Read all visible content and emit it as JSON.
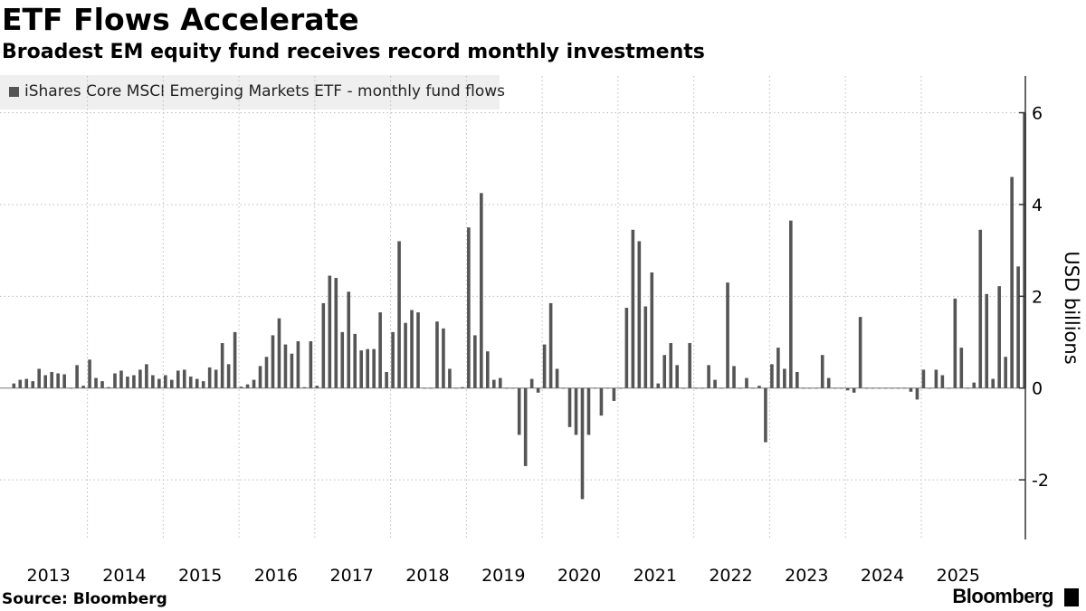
{
  "header": {
    "title": "ETF Flows Accelerate",
    "subtitle": "Broadest EM equity fund receives record monthly investments"
  },
  "footer": {
    "source": "Source: Bloomberg",
    "brand": "Bloomberg"
  },
  "colors": {
    "bar": "#555555",
    "grid": "#bdbdbd",
    "axis": "#333333",
    "zero_line": "#7a7a7a",
    "legend_bg": "#efefef"
  },
  "chart_data": {
    "type": "bar",
    "title": "ETF Flows Accelerate",
    "subtitle": "Broadest EM equity fund receives record monthly investments",
    "ylabel": "USD billions",
    "xlabel": "",
    "ylim": [
      -3.3,
      6.8
    ],
    "yticks": [
      -2,
      0,
      2,
      4,
      6
    ],
    "ytick_labels": [
      "-2",
      "0",
      "2",
      "4",
      "6"
    ],
    "x_start": "2013-01",
    "x_end": "2025-10",
    "years": [
      "2013",
      "2014",
      "2015",
      "2016",
      "2017",
      "2018",
      "2019",
      "2020",
      "2021",
      "2022",
      "2023",
      "2024",
      "2025"
    ],
    "grid": true,
    "y_axis_side": "right",
    "legend_placement": "top-left",
    "series": [
      {
        "name": "iShares Core MSCI Emerging Markets ETF - monthly fund flows",
        "values": [
          0.1,
          0.18,
          0.2,
          0.15,
          0.42,
          0.28,
          0.35,
          0.32,
          0.3,
          0.0,
          0.5,
          0.05,
          0.62,
          0.22,
          0.15,
          0.02,
          0.32,
          0.38,
          0.25,
          0.28,
          0.4,
          0.52,
          0.28,
          0.2,
          0.28,
          0.18,
          0.38,
          0.4,
          0.25,
          0.2,
          0.15,
          0.45,
          0.4,
          0.98,
          0.52,
          1.22,
          0.03,
          0.08,
          0.18,
          0.48,
          0.68,
          1.15,
          1.52,
          0.95,
          0.75,
          1.02,
          0.02,
          1.02,
          0.05,
          1.85,
          2.45,
          2.4,
          1.22,
          2.1,
          1.18,
          0.82,
          0.85,
          0.85,
          1.65,
          0.35,
          1.22,
          3.2,
          1.42,
          1.7,
          1.65,
          0.0,
          0.0,
          1.45,
          1.3,
          0.42,
          0.0,
          0.02,
          3.5,
          1.15,
          4.25,
          0.8,
          0.18,
          0.22,
          0.0,
          0.0,
          -1.02,
          -1.7,
          0.2,
          -0.1,
          0.95,
          1.85,
          0.42,
          0.0,
          -0.85,
          -1.02,
          -2.42,
          -1.02,
          0.0,
          -0.6,
          0.0,
          -0.28,
          0.0,
          1.75,
          3.45,
          3.2,
          1.78,
          2.52,
          0.1,
          0.72,
          0.98,
          0.5,
          0.0,
          0.98,
          0.0,
          0.0,
          0.5,
          0.18,
          0.0,
          2.3,
          0.48,
          0.0,
          0.22,
          0.0,
          0.05,
          -1.18,
          0.52,
          0.88,
          0.42,
          3.65,
          0.35,
          0.0,
          0.0,
          0.0,
          0.72,
          0.22,
          0.0,
          0.0,
          -0.05,
          -0.1,
          1.55,
          0.0,
          0.0,
          0.0,
          0.0,
          0.0,
          0.0,
          0.0,
          -0.08,
          -0.25,
          0.4,
          0.0,
          0.4,
          0.28,
          0.0,
          1.95,
          0.88,
          0.0,
          0.12,
          3.45,
          2.05,
          0.2,
          2.22,
          0.68,
          4.6,
          2.65,
          6.0
        ]
      }
    ]
  }
}
